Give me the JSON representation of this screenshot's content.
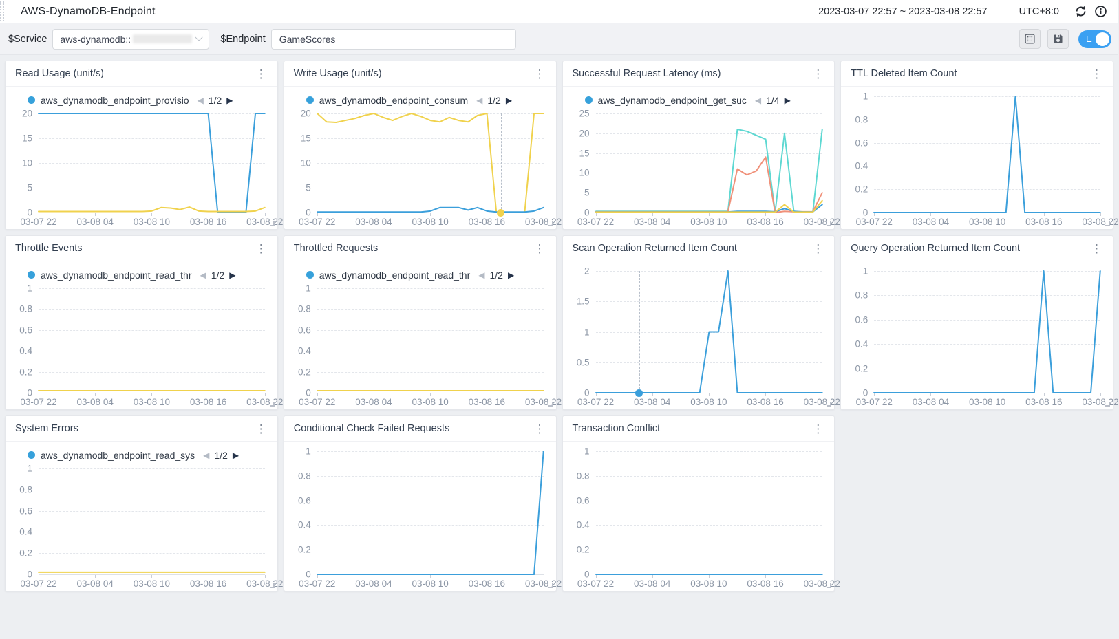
{
  "header": {
    "title": "AWS-DynamoDB-Endpoint",
    "time_range": "2023-03-07 22:57 ~ 2023-03-08 22:57",
    "timezone": "UTC+8:0"
  },
  "toolbar": {
    "service_label": "$Service",
    "service_value": "aws-dynamodb::",
    "endpoint_label": "$Endpoint",
    "endpoint_value": "GameScores",
    "edit_toggle_label": "E",
    "edit_toggle_on": true
  },
  "icons": {
    "kebab": "⋮",
    "legend_prev": "◀",
    "legend_next": "▶"
  },
  "colors": {
    "blue": "#3b9fdb",
    "yellow": "#f0d24d",
    "cyan": "#5ed8d2",
    "orange": "#f0917a",
    "legend_dot": "#37a1db",
    "toggle_on": "#3aa0f2"
  },
  "x_ticks": [
    "03-07 22",
    "03-08 04",
    "03-08 10",
    "03-08 16",
    "03-08 22"
  ],
  "chart_data": [
    {
      "type": "line",
      "title": "Read Usage (unit/s)",
      "legend": {
        "label": "aws_dynamodb_endpoint_provisio",
        "page": "1/2"
      },
      "y_ticks": [
        20,
        15,
        10,
        5,
        0
      ],
      "series": [
        {
          "color": "blue",
          "values": [
            20,
            20,
            20,
            20,
            20,
            20,
            20,
            20,
            20,
            20,
            20,
            20,
            20,
            20,
            20,
            20,
            20,
            20,
            20,
            0,
            0,
            0,
            0,
            20,
            20
          ]
        },
        {
          "color": "yellow",
          "values": [
            0.2,
            0.2,
            0.2,
            0.2,
            0.2,
            0.2,
            0.2,
            0.2,
            0.2,
            0.2,
            0.2,
            0.2,
            0.3,
            1,
            0.9,
            0.6,
            1.1,
            0.3,
            0.2,
            0.2,
            0.2,
            0.2,
            0.2,
            0.3,
            1
          ]
        }
      ]
    },
    {
      "type": "line",
      "title": "Write Usage (unit/s)",
      "legend": {
        "label": "aws_dynamodb_endpoint_consum",
        "page": "1/2"
      },
      "y_ticks": [
        20,
        15,
        10,
        5,
        0
      ],
      "series": [
        {
          "color": "yellow",
          "values": [
            20,
            18.3,
            18.2,
            18.6,
            19,
            19.6,
            20,
            19.2,
            18.6,
            19.4,
            20,
            19.4,
            18.6,
            18.3,
            19.2,
            18.6,
            18.3,
            19.6,
            20,
            0,
            0,
            0,
            0,
            20,
            20
          ]
        },
        {
          "color": "blue",
          "values": [
            0.1,
            0.1,
            0.1,
            0.1,
            0.1,
            0.1,
            0.1,
            0.1,
            0.1,
            0.1,
            0.1,
            0.1,
            0.3,
            1,
            1,
            1,
            0.5,
            1,
            0.3,
            0.1,
            0.1,
            0.1,
            0.1,
            0.3,
            1
          ]
        }
      ],
      "cursor": {
        "hour": 19.5,
        "color": "yellow",
        "value": 0
      }
    },
    {
      "type": "line",
      "title": "Successful Request Latency (ms)",
      "legend": {
        "label": "aws_dynamodb_endpoint_get_suc",
        "page": "1/4"
      },
      "y_ticks": [
        25,
        20,
        15,
        10,
        5,
        0
      ],
      "series": [
        {
          "color": "cyan",
          "values": [
            0.3,
            0.3,
            0.3,
            0.3,
            0.3,
            0.3,
            0.3,
            0.3,
            0.3,
            0.3,
            0.3,
            0.3,
            0.3,
            0.3,
            0.3,
            21,
            20.5,
            19.5,
            18.5,
            0,
            20,
            0,
            0,
            0,
            21
          ]
        },
        {
          "color": "orange",
          "values": [
            0.2,
            0.2,
            0.2,
            0.2,
            0.2,
            0.2,
            0.2,
            0.2,
            0.2,
            0.2,
            0.2,
            0.2,
            0.2,
            0.2,
            0.2,
            11,
            9.5,
            10.5,
            14,
            0,
            0.3,
            0.2,
            0.2,
            0.2,
            5
          ]
        },
        {
          "color": "blue",
          "values": [
            0.15,
            0.15,
            0.15,
            0.15,
            0.15,
            0.15,
            0.15,
            0.15,
            0.15,
            0.15,
            0.15,
            0.15,
            0.15,
            0.15,
            0.15,
            0.3,
            0.3,
            0.3,
            0.3,
            0.2,
            1,
            0.3,
            0.15,
            0.15,
            2
          ]
        },
        {
          "color": "yellow",
          "values": [
            0.1,
            0.1,
            0.1,
            0.1,
            0.1,
            0.1,
            0.1,
            0.1,
            0.1,
            0.1,
            0.1,
            0.1,
            0.1,
            0.1,
            0.1,
            0.1,
            0.1,
            0.1,
            0.1,
            0.1,
            2,
            0.1,
            0.1,
            0.1,
            3
          ]
        }
      ]
    },
    {
      "type": "line",
      "title": "TTL Deleted Item Count",
      "legend": null,
      "y_ticks": [
        1,
        0.8,
        0.6,
        0.4,
        0.2,
        0
      ],
      "series": [
        {
          "color": "blue",
          "values": [
            0,
            0,
            0,
            0,
            0,
            0,
            0,
            0,
            0,
            0,
            0,
            0,
            0,
            0,
            0,
            1,
            0,
            0,
            0,
            0,
            0,
            0,
            0,
            0,
            0
          ]
        }
      ]
    },
    {
      "type": "line",
      "title": "Throttle Events",
      "legend": {
        "label": "aws_dynamodb_endpoint_read_thr",
        "page": "1/2"
      },
      "y_ticks": [
        1,
        0.8,
        0.6,
        0.4,
        0.2,
        0
      ],
      "series": [
        {
          "color": "yellow",
          "values": [
            0.02,
            0.02,
            0.02,
            0.02,
            0.02,
            0.02,
            0.02,
            0.02,
            0.02,
            0.02,
            0.02,
            0.02,
            0.02,
            0.02,
            0.02,
            0.02,
            0.02,
            0.02,
            0.02,
            0.02,
            0.02,
            0.02,
            0.02,
            0.02,
            0.02
          ]
        }
      ]
    },
    {
      "type": "line",
      "title": "Throttled Requests",
      "legend": {
        "label": "aws_dynamodb_endpoint_read_thr",
        "page": "1/2"
      },
      "y_ticks": [
        1,
        0.8,
        0.6,
        0.4,
        0.2,
        0
      ],
      "series": [
        {
          "color": "yellow",
          "values": [
            0.02,
            0.02,
            0.02,
            0.02,
            0.02,
            0.02,
            0.02,
            0.02,
            0.02,
            0.02,
            0.02,
            0.02,
            0.02,
            0.02,
            0.02,
            0.02,
            0.02,
            0.02,
            0.02,
            0.02,
            0.02,
            0.02,
            0.02,
            0.02,
            0.02
          ]
        }
      ]
    },
    {
      "type": "line",
      "title": "Scan Operation Returned Item Count",
      "legend": null,
      "y_ticks": [
        2,
        1.5,
        1,
        0.5,
        0
      ],
      "series": [
        {
          "color": "blue",
          "values": [
            0,
            0,
            0,
            0,
            0,
            0,
            0,
            0,
            0,
            0,
            0,
            0,
            1,
            1,
            2,
            0,
            0,
            0,
            0,
            0,
            0,
            0,
            0,
            0,
            0
          ]
        }
      ],
      "cursor": {
        "hour": 4.6,
        "color": "blue",
        "value": 0
      }
    },
    {
      "type": "line",
      "title": "Query Operation Returned Item Count",
      "legend": null,
      "y_ticks": [
        1,
        0.8,
        0.6,
        0.4,
        0.2,
        0
      ],
      "series": [
        {
          "color": "blue",
          "values": [
            0,
            0,
            0,
            0,
            0,
            0,
            0,
            0,
            0,
            0,
            0,
            0,
            0,
            0,
            0,
            0,
            0,
            0,
            1,
            0,
            0,
            0,
            0,
            0,
            1
          ]
        }
      ]
    },
    {
      "type": "line",
      "title": "System Errors",
      "legend": {
        "label": "aws_dynamodb_endpoint_read_sys",
        "page": "1/2"
      },
      "y_ticks": [
        1,
        0.8,
        0.6,
        0.4,
        0.2,
        0
      ],
      "series": [
        {
          "color": "yellow",
          "values": [
            0.02,
            0.02,
            0.02,
            0.02,
            0.02,
            0.02,
            0.02,
            0.02,
            0.02,
            0.02,
            0.02,
            0.02,
            0.02,
            0.02,
            0.02,
            0.02,
            0.02,
            0.02,
            0.02,
            0.02,
            0.02,
            0.02,
            0.02,
            0.02,
            0.02
          ]
        }
      ]
    },
    {
      "type": "line",
      "title": "Conditional Check Failed Requests",
      "legend": null,
      "y_ticks": [
        1,
        0.8,
        0.6,
        0.4,
        0.2,
        0
      ],
      "series": [
        {
          "color": "blue",
          "values": [
            0,
            0,
            0,
            0,
            0,
            0,
            0,
            0,
            0,
            0,
            0,
            0,
            0,
            0,
            0,
            0,
            0,
            0,
            0,
            0,
            0,
            0,
            0,
            0,
            1
          ]
        }
      ]
    },
    {
      "type": "line",
      "title": "Transaction Conflict",
      "legend": null,
      "y_ticks": [
        1,
        0.8,
        0.6,
        0.4,
        0.2,
        0
      ],
      "series": [
        {
          "color": "blue",
          "values": [
            0,
            0,
            0,
            0,
            0,
            0,
            0,
            0,
            0,
            0,
            0,
            0,
            0,
            0,
            0,
            0,
            0,
            0,
            0,
            0,
            0,
            0,
            0,
            0,
            0
          ]
        }
      ]
    }
  ]
}
